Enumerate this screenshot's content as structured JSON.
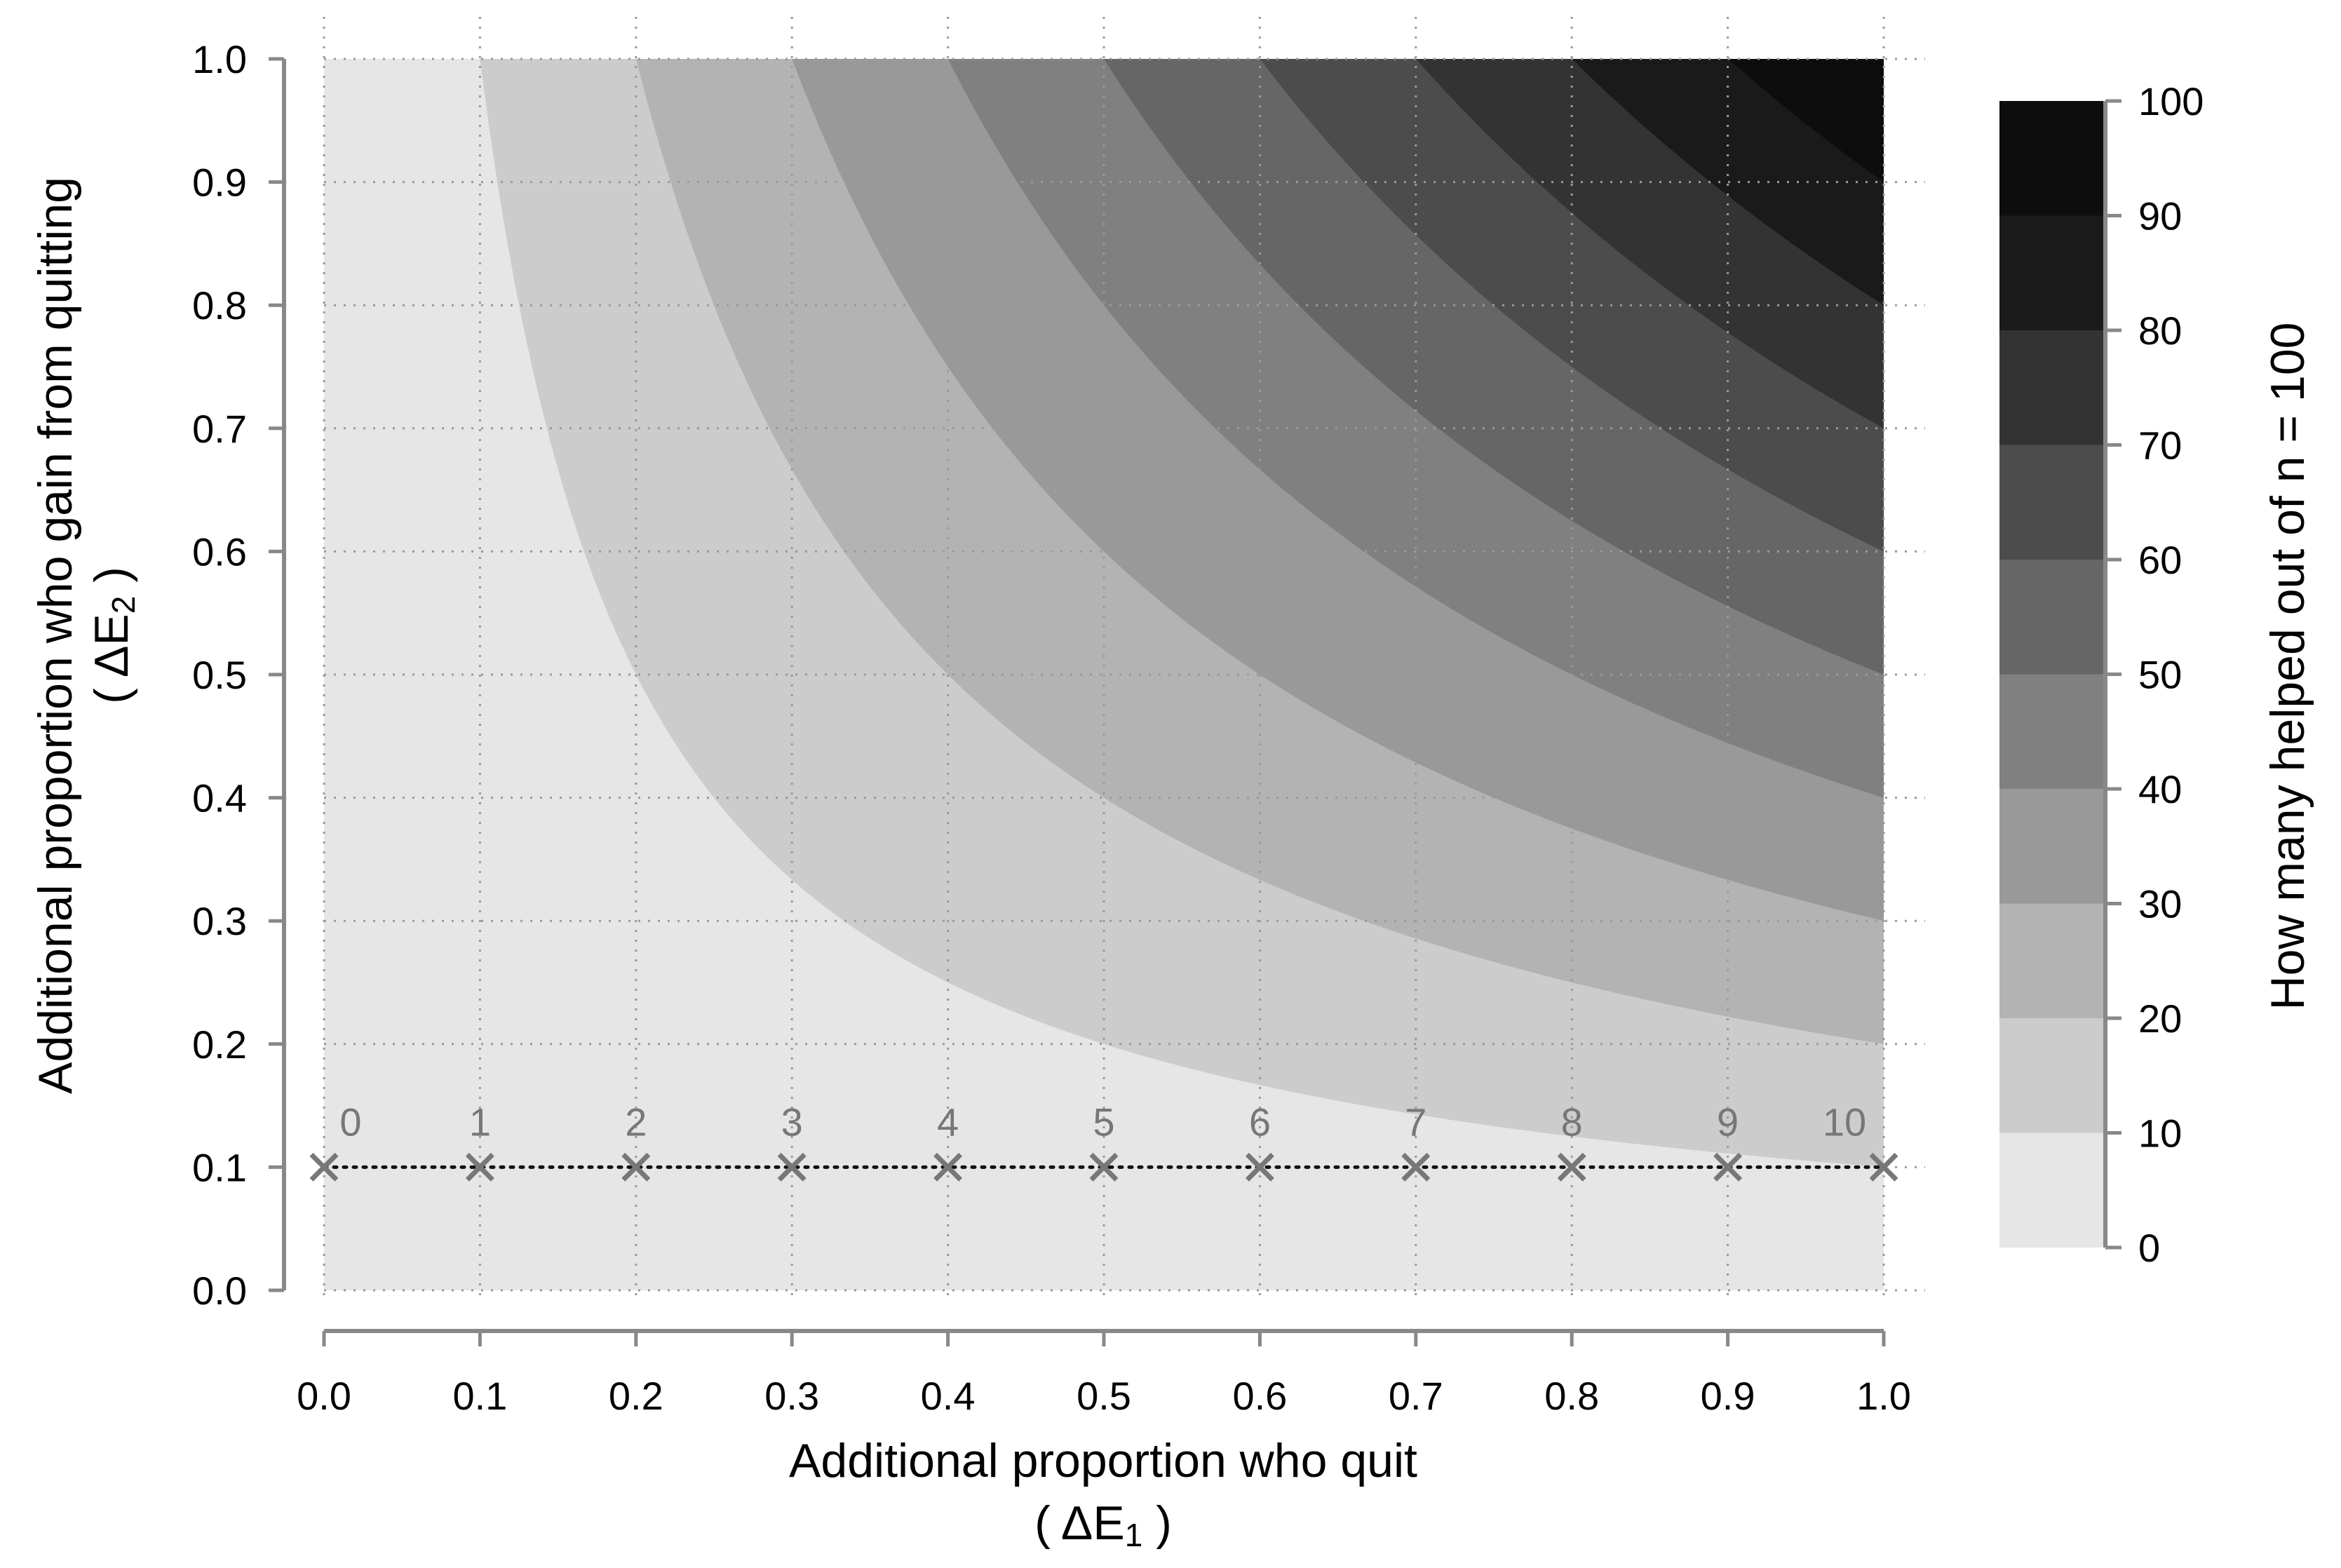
{
  "chart_data": {
    "type": "heatmap",
    "title": "",
    "xlabel": "Additional proportion who quit",
    "xlabel_symbol": "( ΔE",
    "xlabel_sub": "1",
    "xlabel_close": " )",
    "ylabel": "Additional proportion who gain from quitting",
    "ylabel_symbol": "( ΔE",
    "ylabel_sub": "2",
    "ylabel_close": " )",
    "colorbar_label": "How many helped out of n = 100",
    "xlim": [
      0,
      1
    ],
    "ylim": [
      0,
      1
    ],
    "x_ticks": [
      "0.0",
      "0.1",
      "0.2",
      "0.3",
      "0.4",
      "0.5",
      "0.6",
      "0.7",
      "0.8",
      "0.9",
      "1.0"
    ],
    "y_ticks": [
      "0.0",
      "0.1",
      "0.2",
      "0.3",
      "0.4",
      "0.5",
      "0.6",
      "0.7",
      "0.8",
      "0.9",
      "1.0"
    ],
    "z_function": "100 * x * y",
    "levels": [
      0,
      10,
      20,
      30,
      40,
      50,
      60,
      70,
      80,
      90,
      100
    ],
    "level_colors": [
      "#e6e6e6",
      "#cccccc",
      "#b3b3b3",
      "#999999",
      "#808080",
      "#666666",
      "#4c4c4c",
      "#333333",
      "#1a1a1a",
      "#0d0d0d"
    ],
    "colorbar_ticks": [
      "0",
      "10",
      "20",
      "30",
      "40",
      "50",
      "60",
      "70",
      "80",
      "90",
      "100"
    ],
    "grid": true,
    "marker_series": {
      "marker": "x",
      "line_style": "dotted",
      "x": [
        0.0,
        0.1,
        0.2,
        0.3,
        0.4,
        0.5,
        0.6,
        0.7,
        0.8,
        0.9,
        1.0
      ],
      "y": [
        0.1,
        0.1,
        0.1,
        0.1,
        0.1,
        0.1,
        0.1,
        0.1,
        0.1,
        0.1,
        0.1
      ],
      "labels": [
        "0",
        "1",
        "2",
        "3",
        "4",
        "5",
        "6",
        "7",
        "8",
        "9",
        "10"
      ]
    }
  }
}
